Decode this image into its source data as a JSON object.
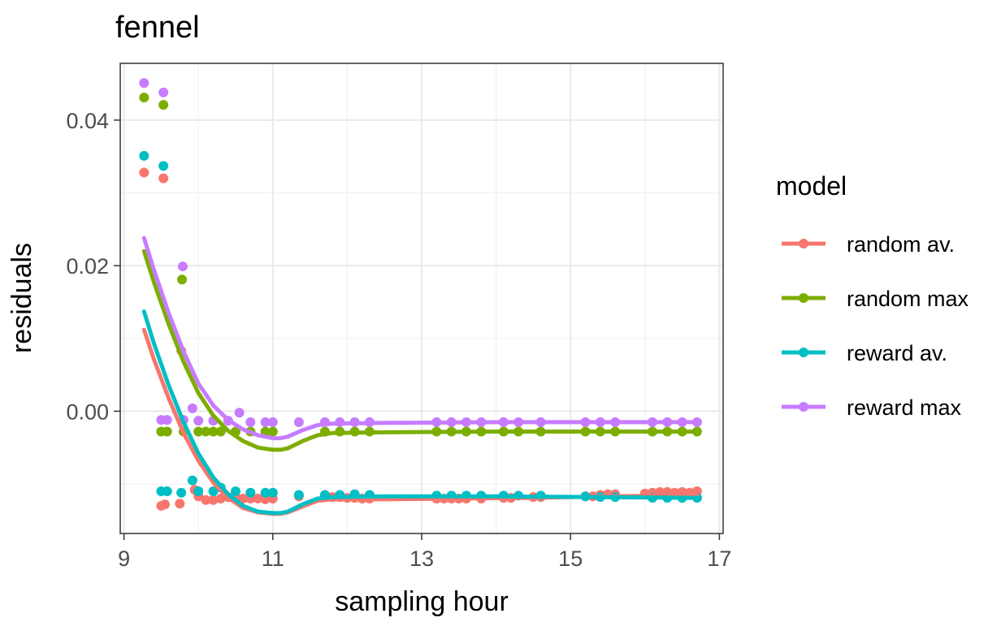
{
  "chart_data": {
    "type": "scatter",
    "title": "fennel",
    "xlabel": "sampling hour",
    "ylabel": "residuals",
    "xlim": [
      8.95,
      17.05
    ],
    "ylim": [
      -0.0168,
      0.0478
    ],
    "xticks": [
      9,
      11,
      13,
      15,
      17
    ],
    "yticks": [
      0.0,
      0.02,
      0.04
    ],
    "ytick_labels": [
      "0.00",
      "0.02",
      "0.04"
    ],
    "grid": true,
    "legend": {
      "title": "model",
      "position": "right"
    },
    "series": [
      {
        "name": "random av.",
        "color": "#F8766D",
        "points": [
          [
            9.27,
            0.0328
          ],
          [
            9.53,
            0.032
          ],
          [
            9.77,
            0.0083
          ],
          [
            9.5,
            -0.013
          ],
          [
            9.55,
            -0.0128
          ],
          [
            9.75,
            -0.0127
          ],
          [
            9.95,
            -0.0108
          ],
          [
            10.0,
            -0.0117
          ],
          [
            10.1,
            -0.0122
          ],
          [
            10.2,
            -0.0122
          ],
          [
            10.3,
            -0.012
          ],
          [
            10.4,
            -0.0118
          ],
          [
            10.5,
            -0.0118
          ],
          [
            10.6,
            -0.012
          ],
          [
            10.7,
            -0.012
          ],
          [
            10.8,
            -0.012
          ],
          [
            10.9,
            -0.0121
          ],
          [
            11.0,
            -0.012
          ],
          [
            11.35,
            -0.0117
          ],
          [
            11.7,
            -0.0118
          ],
          [
            11.8,
            -0.0118
          ],
          [
            11.9,
            -0.0118
          ],
          [
            12.0,
            -0.0119
          ],
          [
            12.1,
            -0.0119
          ],
          [
            12.2,
            -0.012
          ],
          [
            12.3,
            -0.012
          ],
          [
            13.2,
            -0.012
          ],
          [
            13.3,
            -0.012
          ],
          [
            13.4,
            -0.012
          ],
          [
            13.5,
            -0.012
          ],
          [
            13.6,
            -0.012
          ],
          [
            13.8,
            -0.012
          ],
          [
            14.1,
            -0.0119
          ],
          [
            14.2,
            -0.0119
          ],
          [
            14.5,
            -0.0118
          ],
          [
            14.6,
            -0.0118
          ],
          [
            15.2,
            -0.0117
          ],
          [
            15.3,
            -0.0117
          ],
          [
            15.4,
            -0.0115
          ],
          [
            15.5,
            -0.0114
          ],
          [
            15.6,
            -0.0114
          ],
          [
            16.0,
            -0.0113
          ],
          [
            16.1,
            -0.0112
          ],
          [
            16.2,
            -0.0111
          ],
          [
            16.3,
            -0.0111
          ],
          [
            16.4,
            -0.0112
          ],
          [
            16.5,
            -0.0111
          ],
          [
            16.6,
            -0.0112
          ],
          [
            16.7,
            -0.011
          ]
        ],
        "smooth": [
          [
            9.27,
            0.0112
          ],
          [
            9.4,
            0.0072
          ],
          [
            9.6,
            0.0018
          ],
          [
            9.8,
            -0.003
          ],
          [
            10.0,
            -0.0068
          ],
          [
            10.2,
            -0.0098
          ],
          [
            10.4,
            -0.0119
          ],
          [
            10.6,
            -0.0133
          ],
          [
            10.8,
            -0.0139
          ],
          [
            11.0,
            -0.0141
          ],
          [
            11.1,
            -0.0141
          ],
          [
            11.2,
            -0.0139
          ],
          [
            11.4,
            -0.0131
          ],
          [
            11.6,
            -0.0123
          ],
          [
            11.8,
            -0.0121
          ],
          [
            12.5,
            -0.0121
          ],
          [
            13.5,
            -0.012
          ],
          [
            14.5,
            -0.0119
          ],
          [
            15.5,
            -0.0117
          ],
          [
            16.2,
            -0.0116
          ],
          [
            16.7,
            -0.0115
          ]
        ]
      },
      {
        "name": "random max",
        "color": "#7CAE00",
        "points": [
          [
            9.27,
            0.0431
          ],
          [
            9.53,
            0.0421
          ],
          [
            9.78,
            0.0181
          ],
          [
            9.5,
            -0.0028
          ],
          [
            9.58,
            -0.0028
          ],
          [
            9.8,
            -0.0028
          ],
          [
            10.0,
            -0.0028
          ],
          [
            10.1,
            -0.0028
          ],
          [
            10.2,
            -0.0028
          ],
          [
            10.3,
            -0.0028
          ],
          [
            10.5,
            -0.0028
          ],
          [
            10.7,
            -0.0028
          ],
          [
            10.9,
            -0.0028
          ],
          [
            11.0,
            -0.0028
          ],
          [
            11.7,
            -0.0028
          ],
          [
            11.9,
            -0.0028
          ],
          [
            12.1,
            -0.0028
          ],
          [
            12.3,
            -0.0028
          ],
          [
            13.2,
            -0.0028
          ],
          [
            13.4,
            -0.0028
          ],
          [
            13.6,
            -0.0028
          ],
          [
            13.8,
            -0.0028
          ],
          [
            14.1,
            -0.0028
          ],
          [
            14.3,
            -0.0028
          ],
          [
            14.6,
            -0.0028
          ],
          [
            15.2,
            -0.0028
          ],
          [
            15.4,
            -0.0028
          ],
          [
            15.6,
            -0.0028
          ],
          [
            16.1,
            -0.0028
          ],
          [
            16.3,
            -0.0028
          ],
          [
            16.5,
            -0.0028
          ],
          [
            16.7,
            -0.0028
          ]
        ],
        "smooth": [
          [
            9.27,
            0.022
          ],
          [
            9.4,
            0.0178
          ],
          [
            9.6,
            0.012
          ],
          [
            9.8,
            0.0068
          ],
          [
            10.0,
            0.0025
          ],
          [
            10.2,
            -0.0006
          ],
          [
            10.4,
            -0.0027
          ],
          [
            10.6,
            -0.0041
          ],
          [
            10.8,
            -0.005
          ],
          [
            11.0,
            -0.0053
          ],
          [
            11.1,
            -0.0053
          ],
          [
            11.2,
            -0.0051
          ],
          [
            11.4,
            -0.0041
          ],
          [
            11.6,
            -0.0033
          ],
          [
            11.8,
            -0.003
          ],
          [
            12.5,
            -0.0029
          ],
          [
            14.0,
            -0.0028
          ],
          [
            15.5,
            -0.0028
          ],
          [
            16.7,
            -0.0028
          ]
        ]
      },
      {
        "name": "reward av.",
        "color": "#00BFC4",
        "points": [
          [
            9.27,
            0.0351
          ],
          [
            9.53,
            0.0337
          ],
          [
            9.5,
            -0.011
          ],
          [
            9.58,
            -0.011
          ],
          [
            9.77,
            -0.0112
          ],
          [
            9.92,
            -0.0095
          ],
          [
            10.0,
            -0.011
          ],
          [
            10.2,
            -0.011
          ],
          [
            10.3,
            -0.0105
          ],
          [
            10.5,
            -0.011
          ],
          [
            10.7,
            -0.0112
          ],
          [
            10.9,
            -0.0112
          ],
          [
            11.0,
            -0.0112
          ],
          [
            11.35,
            -0.0115
          ],
          [
            11.7,
            -0.0115
          ],
          [
            11.9,
            -0.0115
          ],
          [
            12.1,
            -0.0114
          ],
          [
            12.3,
            -0.0115
          ],
          [
            13.2,
            -0.0116
          ],
          [
            13.4,
            -0.0116
          ],
          [
            13.6,
            -0.0116
          ],
          [
            13.8,
            -0.0116
          ],
          [
            14.1,
            -0.0116
          ],
          [
            14.3,
            -0.0116
          ],
          [
            14.6,
            -0.0116
          ],
          [
            15.2,
            -0.0117
          ],
          [
            15.4,
            -0.0118
          ],
          [
            15.6,
            -0.0118
          ],
          [
            16.1,
            -0.0119
          ],
          [
            16.3,
            -0.0119
          ],
          [
            16.5,
            -0.0119
          ],
          [
            16.7,
            -0.0119
          ]
        ],
        "smooth": [
          [
            9.27,
            0.0137
          ],
          [
            9.4,
            0.0094
          ],
          [
            9.6,
            0.0036
          ],
          [
            9.8,
            -0.0015
          ],
          [
            10.0,
            -0.0058
          ],
          [
            10.2,
            -0.0091
          ],
          [
            10.4,
            -0.0114
          ],
          [
            10.6,
            -0.013
          ],
          [
            10.8,
            -0.0138
          ],
          [
            11.0,
            -0.014
          ],
          [
            11.1,
            -0.014
          ],
          [
            11.2,
            -0.0138
          ],
          [
            11.4,
            -0.0128
          ],
          [
            11.6,
            -0.012
          ],
          [
            11.8,
            -0.0118
          ],
          [
            12.5,
            -0.0117
          ],
          [
            14.0,
            -0.0117
          ],
          [
            15.5,
            -0.0118
          ],
          [
            16.7,
            -0.0119
          ]
        ]
      },
      {
        "name": "reward max",
        "color": "#C77CFF",
        "points": [
          [
            9.27,
            0.0451
          ],
          [
            9.53,
            0.0438
          ],
          [
            9.79,
            0.0199
          ],
          [
            9.92,
            0.0004
          ],
          [
            9.5,
            -0.0012
          ],
          [
            9.58,
            -0.0012
          ],
          [
            9.8,
            -0.0012
          ],
          [
            10.0,
            -0.0013
          ],
          [
            10.2,
            -0.0013
          ],
          [
            10.4,
            -0.0013
          ],
          [
            10.55,
            -0.0002
          ],
          [
            10.7,
            -0.0015
          ],
          [
            10.9,
            -0.0015
          ],
          [
            11.0,
            -0.0015
          ],
          [
            11.35,
            -0.0015
          ],
          [
            11.7,
            -0.0015
          ],
          [
            11.9,
            -0.0015
          ],
          [
            12.1,
            -0.0015
          ],
          [
            12.3,
            -0.0015
          ],
          [
            13.2,
            -0.0015
          ],
          [
            13.4,
            -0.0015
          ],
          [
            13.6,
            -0.0015
          ],
          [
            13.8,
            -0.0015
          ],
          [
            14.1,
            -0.0015
          ],
          [
            14.3,
            -0.0015
          ],
          [
            14.6,
            -0.0015
          ],
          [
            15.2,
            -0.0015
          ],
          [
            15.4,
            -0.0015
          ],
          [
            15.6,
            -0.0015
          ],
          [
            16.1,
            -0.0015
          ],
          [
            16.3,
            -0.0015
          ],
          [
            16.5,
            -0.0015
          ],
          [
            16.7,
            -0.0015
          ]
        ],
        "smooth": [
          [
            9.27,
            0.0238
          ],
          [
            9.4,
            0.0195
          ],
          [
            9.6,
            0.0135
          ],
          [
            9.8,
            0.0082
          ],
          [
            10.0,
            0.0038
          ],
          [
            10.2,
            0.0008
          ],
          [
            10.4,
            -0.0012
          ],
          [
            10.6,
            -0.0025
          ],
          [
            10.8,
            -0.0033
          ],
          [
            11.0,
            -0.0037
          ],
          [
            11.1,
            -0.0037
          ],
          [
            11.2,
            -0.0035
          ],
          [
            11.4,
            -0.0026
          ],
          [
            11.6,
            -0.0019
          ],
          [
            11.8,
            -0.0017
          ],
          [
            12.5,
            -0.0016
          ],
          [
            14.0,
            -0.0015
          ],
          [
            15.5,
            -0.0015
          ],
          [
            16.7,
            -0.0015
          ]
        ]
      }
    ]
  }
}
